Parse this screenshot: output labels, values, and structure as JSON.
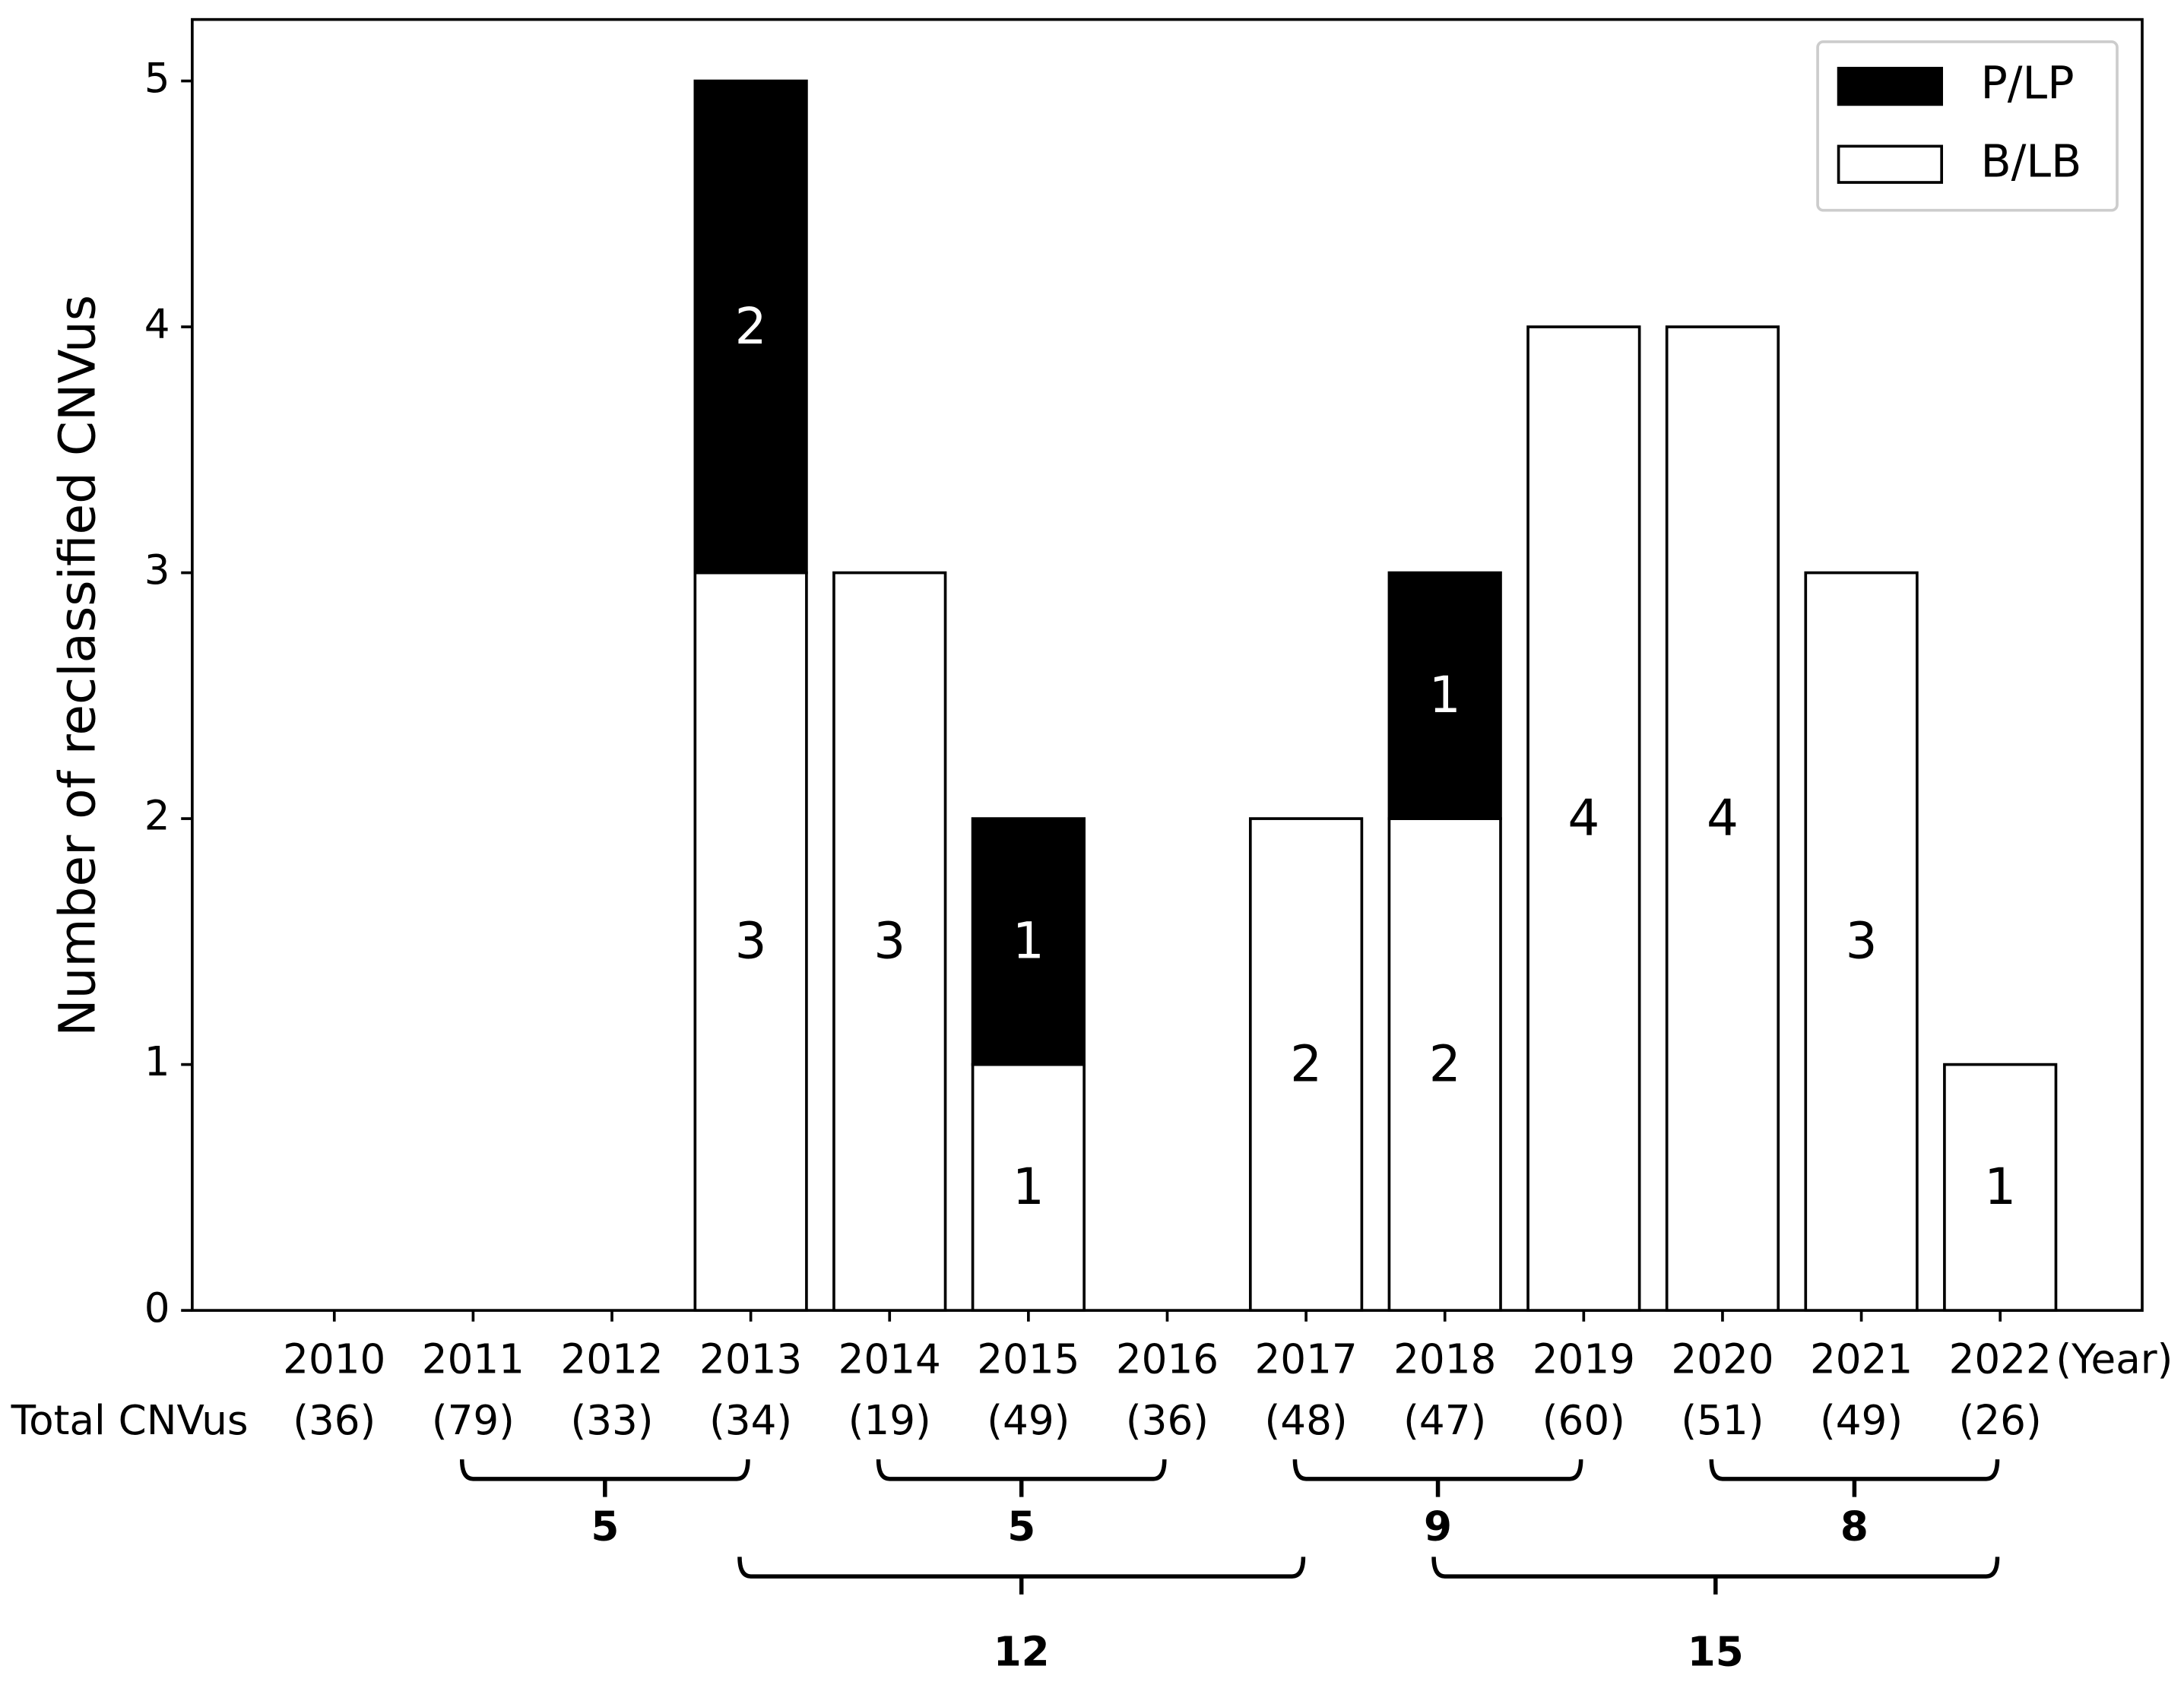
{
  "chart_data": {
    "type": "bar",
    "stacked": true,
    "y_label": "Number of reclassified CNVus",
    "x_unit_label": "(Year)",
    "categories": [
      "2010",
      "2011",
      "2012",
      "2013",
      "2014",
      "2015",
      "2016",
      "2017",
      "2018",
      "2019",
      "2020",
      "2021",
      "2022"
    ],
    "series": [
      {
        "name": "B/LB",
        "color": "#ffffff",
        "values": [
          0,
          0,
          0,
          3,
          3,
          1,
          0,
          2,
          2,
          4,
          4,
          3,
          1
        ]
      },
      {
        "name": "P/LP",
        "color": "#000000",
        "values": [
          0,
          0,
          0,
          2,
          0,
          1,
          0,
          0,
          1,
          0,
          0,
          0,
          0
        ]
      }
    ],
    "ylim": [
      0,
      5.25
    ],
    "yticks": [
      0,
      1,
      2,
      3,
      4,
      5
    ],
    "legend": "upper right",
    "totals": {
      "label": "Total CNVus",
      "values": [
        "(36)",
        "(79)",
        "(33)",
        "(34)",
        "(19)",
        "(49)",
        "(36)",
        "(48)",
        "(47)",
        "(60)",
        "(51)",
        "(49)",
        "(26)"
      ]
    },
    "brackets": [
      {
        "span": [
          "2011",
          "2013"
        ],
        "text": "5",
        "row": 1
      },
      {
        "span": [
          "2014",
          "2016"
        ],
        "text": "5",
        "row": 1
      },
      {
        "span": [
          "2017",
          "2019"
        ],
        "text": "9",
        "row": 1
      },
      {
        "span": [
          "2020",
          "2022"
        ],
        "text": "8",
        "row": 1
      },
      {
        "span": [
          "2013",
          "2017"
        ],
        "text": "12",
        "row": 2
      },
      {
        "span": [
          "2018",
          "2022"
        ],
        "text": "15",
        "row": 2
      }
    ]
  }
}
